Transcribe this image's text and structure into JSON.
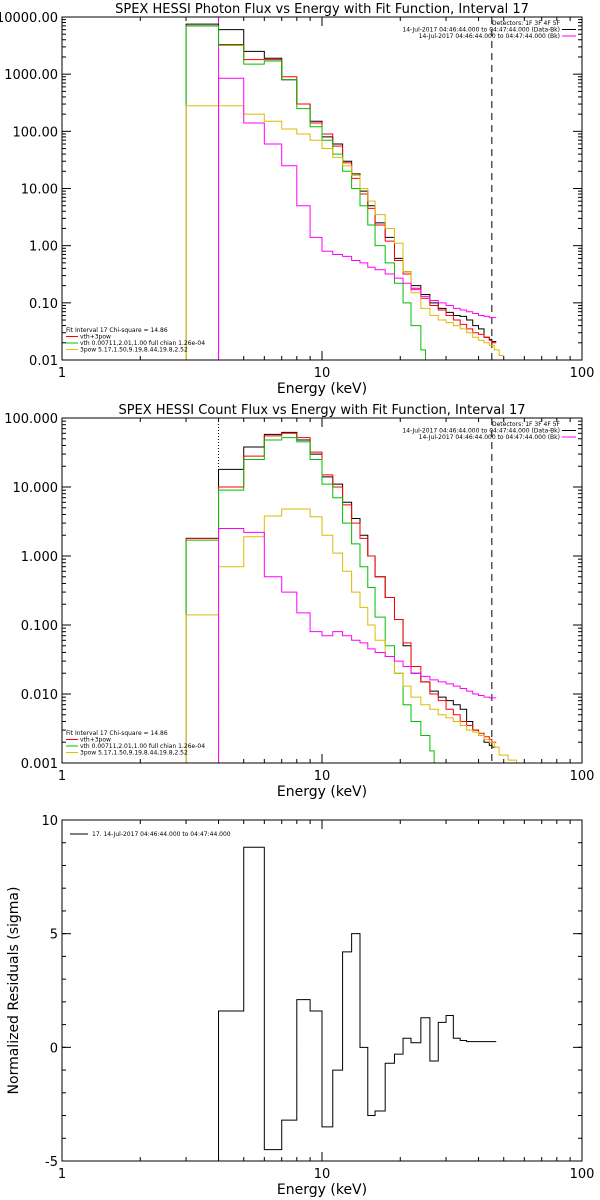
{
  "chart_data": [
    {
      "type": "line",
      "title": "SPEX HESSI Photon Flux vs Energy with Fit Function, Interval 17",
      "xlabel": "Energy (keV)",
      "ylabel": "",
      "xscale": "log",
      "yscale": "log",
      "xlim": [
        1,
        100
      ],
      "ylim": [
        0.01,
        10000
      ],
      "x_ticks": [
        "1",
        "10",
        "100"
      ],
      "y_ticks": [
        "0.01",
        "0.10",
        "1.00",
        "10.00",
        "100.00",
        "1000.00",
        "10000.00"
      ],
      "legend_right": [
        "Detectors: 1F 3F 4F 5F",
        "14-Jul-2017 04:46:44.000 to 04:47:44.000 (Data-Bk)",
        "14-Jul-2017 04:46:44.000 to 04:47:44.000 (Bk)"
      ],
      "legend_left": [
        "Fit Interval 17    Chi-square = 14.86",
        "vth+3pow",
        "vth 0.00711,2.01,1.00  full chian 1.26e-04",
        "3pow 5.17,1.50,9.19,8.44,19.8,2.52"
      ],
      "vlines": [
        {
          "x": 4.0,
          "style": "solid",
          "color": "#ff00ff"
        },
        {
          "x": 45.0,
          "style": "dashed",
          "color": "#000000"
        }
      ],
      "series": [
        {
          "name": "14-Jul-2017 04:46:44.000 to 04:47:44.000 (Data-Bk)",
          "color": "#000000",
          "x": [
            3.0,
            4.0,
            5.0,
            6.0,
            7.0,
            8.0,
            9.0,
            10.0,
            11.0,
            12.0,
            13.0,
            14.0,
            15.0,
            16.0,
            17.5,
            19.0,
            20.5,
            22.0,
            24.0,
            26.0,
            28.0,
            30.0,
            32.0,
            34.0,
            36.0,
            38.0,
            40.0,
            42.0,
            44.0,
            45.0
          ],
          "y": [
            7500,
            6000,
            2500,
            1900,
            800,
            300,
            150,
            80,
            60,
            30,
            18,
            9,
            5,
            2.5,
            1.4,
            0.6,
            0.35,
            0.2,
            0.14,
            0.1,
            0.08,
            0.068,
            0.06,
            0.058,
            0.05,
            0.04,
            0.035,
            0.025,
            0.023,
            0.021
          ]
        },
        {
          "name": "vth+3pow",
          "color": "#ff0000",
          "x": [
            3.0,
            4.0,
            5.0,
            6.0,
            7.0,
            8.0,
            9.0,
            10.0,
            11.0,
            12.0,
            13.0,
            14.0,
            15.0,
            16.0,
            17.5,
            19.0,
            20.5,
            22.0,
            24.0,
            26.0,
            28.0,
            30.0,
            32.0,
            34.0,
            36.0,
            38.0,
            40.0,
            42.0,
            44.0,
            45.0
          ],
          "y": [
            7000,
            3300,
            1800,
            1800,
            900,
            300,
            140,
            90,
            55,
            28,
            15,
            8,
            4.5,
            2.3,
            1.2,
            0.55,
            0.32,
            0.18,
            0.12,
            0.09,
            0.075,
            0.06,
            0.05,
            0.042,
            0.035,
            0.03,
            0.028,
            0.025,
            0.022,
            0.02
          ]
        },
        {
          "name": "vth 0.00711,2.01,1.00  full chian 1.26e-04",
          "color": "#00c000",
          "x": [
            3.0,
            4.0,
            5.0,
            6.0,
            7.0,
            8.0,
            9.0,
            10.0,
            11.0,
            12.0,
            13.0,
            14.0,
            15.0,
            16.0,
            17.5,
            19.0,
            20.5,
            22.0,
            24.0,
            25.0
          ],
          "y": [
            7000,
            3200,
            1500,
            1700,
            800,
            250,
            120,
            70,
            40,
            20,
            10,
            5,
            2.3,
            1,
            0.5,
            0.22,
            0.1,
            0.04,
            0.015,
            0.01
          ]
        },
        {
          "name": "3pow 5.17,1.50,9.19,8.44,19.8,2.52",
          "color": "#ddbb00",
          "x": [
            3.0,
            4.0,
            5.0,
            6.0,
            7.0,
            8.0,
            9.0,
            10.0,
            11.0,
            12.0,
            13.0,
            14.0,
            15.0,
            16.0,
            17.5,
            19.0,
            20.5,
            22.0,
            24.0,
            26.0,
            28.0,
            30.0,
            32.0,
            34.0,
            36.0,
            38.0,
            40.0,
            42.0,
            44.0,
            46.0,
            48.0
          ],
          "y": [
            280,
            280,
            200,
            150,
            110,
            90,
            70,
            50,
            35,
            25,
            17,
            10,
            6,
            3.5,
            2,
            1.1,
            0.35,
            0.15,
            0.08,
            0.06,
            0.05,
            0.045,
            0.04,
            0.035,
            0.03,
            0.025,
            0.022,
            0.02,
            0.018,
            0.015,
            0.012
          ]
        },
        {
          "name": "14-Jul-2017 04:46:44.000 to 04:47:44.000 (Bk)",
          "color": "#ff00ff",
          "x": [
            4.0,
            5.0,
            6.0,
            7.0,
            8.0,
            9.0,
            10.0,
            11.0,
            12.0,
            13.0,
            14.0,
            15.0,
            16.0,
            17.5,
            19.0,
            20.5,
            22.0,
            24.0,
            26.0,
            28.0,
            30.0,
            32.0,
            34.0,
            36.0,
            38.0,
            40.0,
            42.0,
            44.0,
            45.0
          ],
          "y": [
            850,
            140,
            60,
            25,
            5,
            1.4,
            0.8,
            0.7,
            0.65,
            0.55,
            0.5,
            0.42,
            0.38,
            0.32,
            0.27,
            0.22,
            0.17,
            0.13,
            0.11,
            0.1,
            0.09,
            0.08,
            0.075,
            0.07,
            0.065,
            0.06,
            0.058,
            0.055,
            0.055
          ]
        }
      ]
    },
    {
      "type": "line",
      "title": "SPEX HESSI Count Flux vs Energy with Fit Function, Interval 17",
      "xlabel": "Energy (keV)",
      "ylabel": "",
      "xscale": "log",
      "yscale": "log",
      "xlim": [
        1,
        100
      ],
      "ylim": [
        0.001,
        100
      ],
      "x_ticks": [
        "1",
        "10",
        "100"
      ],
      "y_ticks": [
        "0.001",
        "0.010",
        "0.100",
        "1.000",
        "10.000",
        "100.000"
      ],
      "legend_right": [
        "Detectors: 1F 3F 4F 5F",
        "14-Jul-2017 04:46:44.000 to 04:47:44.000 (Data-Bk)",
        "14-Jul-2017 04:46:44.000 to 04:47:44.000 (Bk)"
      ],
      "legend_left": [
        "Fit Interval 17    Chi-square = 14.86",
        "vth+3pow",
        "vth 0.00711,2.01,1.00  full chian 1.26e-04",
        "3pow 5.17,1.50,9.19,8.44,19.8,2.52"
      ],
      "vlines": [
        {
          "x": 4.0,
          "style": "dotted",
          "color": "#000000"
        },
        {
          "x": 45.0,
          "style": "dashed",
          "color": "#000000"
        }
      ],
      "series": [
        {
          "name": "14-Jul-2017 04:46:44.000 to 04:47:44.000 (Data-Bk)",
          "color": "#000000",
          "x": [
            3.0,
            4.0,
            5.0,
            6.0,
            7.0,
            8.0,
            9.0,
            10.0,
            11.0,
            12.0,
            13.0,
            14.0,
            15.0,
            16.0,
            17.5,
            19.0,
            20.5,
            22.0,
            24.0,
            26.0,
            28.0,
            30.0,
            32.0,
            34.0,
            36.0,
            38.0,
            40.0,
            42.0,
            44.0,
            45.0
          ],
          "y": [
            1.8,
            18,
            38,
            58,
            62,
            48,
            30,
            14,
            11,
            6,
            3.5,
            2,
            1,
            0.5,
            0.25,
            0.12,
            0.05,
            0.02,
            0.015,
            0.011,
            0.009,
            0.008,
            0.007,
            0.006,
            0.004,
            0.003,
            0.0025,
            0.002,
            0.0018,
            0.0017
          ]
        },
        {
          "name": "vth+3pow",
          "color": "#ff0000",
          "x": [
            3.0,
            4.0,
            5.0,
            6.0,
            7.0,
            8.0,
            9.0,
            10.0,
            11.0,
            12.0,
            13.0,
            14.0,
            15.0,
            16.0,
            17.5,
            19.0,
            20.5,
            22.0,
            24.0,
            26.0,
            28.0,
            30.0,
            32.0,
            34.0,
            36.0,
            38.0,
            40.0,
            42.0,
            44.0,
            45.0
          ],
          "y": [
            1.8,
            10,
            28,
            55,
            60,
            52,
            32,
            15,
            10,
            5.5,
            3,
            1.8,
            1,
            0.5,
            0.25,
            0.12,
            0.055,
            0.025,
            0.015,
            0.01,
            0.008,
            0.006,
            0.005,
            0.004,
            0.0035,
            0.003,
            0.0027,
            0.0024,
            0.0022,
            0.002
          ]
        },
        {
          "name": "vth 0.00711,2.01,1.00  full chian 1.26e-04",
          "color": "#00c000",
          "x": [
            3.0,
            4.0,
            5.0,
            6.0,
            7.0,
            8.0,
            9.0,
            10.0,
            11.0,
            12.0,
            13.0,
            14.0,
            15.0,
            16.0,
            17.5,
            19.0,
            20.5,
            22.0,
            24.0,
            26.0,
            27.0
          ],
          "y": [
            1.7,
            9,
            25,
            48,
            52,
            45,
            25,
            11,
            7,
            3,
            1.5,
            0.7,
            0.35,
            0.13,
            0.05,
            0.02,
            0.007,
            0.004,
            0.0025,
            0.0015,
            0.001
          ]
        },
        {
          "name": "3pow 5.17,1.50,9.19,8.44,19.8,2.52",
          "color": "#ddbb00",
          "x": [
            3.0,
            4.0,
            5.0,
            6.0,
            7.0,
            8.0,
            9.0,
            10.0,
            11.0,
            12.0,
            13.0,
            14.0,
            15.0,
            16.0,
            17.5,
            19.0,
            20.5,
            22.0,
            24.0,
            26.0,
            28.0,
            30.0,
            32.0,
            34.0,
            36.0,
            38.0,
            40.0,
            42.0,
            44.0,
            46.0,
            48.0,
            52.0,
            56.0,
            60.0
          ],
          "y": [
            0.14,
            0.7,
            1.9,
            3.8,
            4.8,
            4.8,
            3.7,
            2,
            1.1,
            0.6,
            0.3,
            0.18,
            0.1,
            0.06,
            0.035,
            0.02,
            0.013,
            0.009,
            0.007,
            0.006,
            0.005,
            0.0045,
            0.004,
            0.0035,
            0.003,
            0.0028,
            0.0025,
            0.0022,
            0.002,
            0.0017,
            0.0013,
            0.0011,
            0.001,
            0.001
          ]
        },
        {
          "name": "14-Jul-2017 04:46:44.000 to 04:47:44.000 (Bk)",
          "color": "#ff00ff",
          "x": [
            4.0,
            5.0,
            6.0,
            7.0,
            8.0,
            9.0,
            10.0,
            11.0,
            12.0,
            13.0,
            14.0,
            15.0,
            16.0,
            17.5,
            19.0,
            20.5,
            22.0,
            24.0,
            26.0,
            28.0,
            30.0,
            32.0,
            34.0,
            36.0,
            38.0,
            40.0,
            42.0,
            44.0,
            45.0
          ],
          "y": [
            2.5,
            2.2,
            0.5,
            0.3,
            0.15,
            0.08,
            0.07,
            0.08,
            0.07,
            0.06,
            0.055,
            0.045,
            0.04,
            0.035,
            0.03,
            0.025,
            0.02,
            0.018,
            0.016,
            0.015,
            0.014,
            0.013,
            0.012,
            0.011,
            0.01,
            0.0095,
            0.009,
            0.0088,
            0.0088
          ]
        }
      ]
    },
    {
      "type": "line",
      "title": "",
      "xlabel": "Energy (keV)",
      "ylabel": "Normalized Residuals (sigma)",
      "xscale": "log",
      "yscale": "linear",
      "xlim": [
        1,
        100
      ],
      "ylim": [
        -5,
        10
      ],
      "x_ticks": [
        "1",
        "10",
        "100"
      ],
      "y_ticks": [
        "-5",
        "0",
        "5",
        "10"
      ],
      "legend": [
        "17. 14-Jul-2017 04:46:44.000 to 04:47:44.000"
      ],
      "series": [
        {
          "name": "17. 14-Jul-2017 04:46:44.000 to 04:47:44.000",
          "color": "#000000",
          "x": [
            4.0,
            5.0,
            6.0,
            7.0,
            8.0,
            9.0,
            10.0,
            11.0,
            12.0,
            13.0,
            14.0,
            15.0,
            16.0,
            17.5,
            19.0,
            20.5,
            22.0,
            24.0,
            26.0,
            28.0,
            30.0,
            32.0,
            34.0,
            36.0,
            38.0,
            40.0,
            42.0,
            44.0,
            45.0
          ],
          "y": [
            1.6,
            8.8,
            -4.5,
            -3.2,
            2.1,
            1.6,
            -3.5,
            -1,
            4.2,
            5,
            0,
            -3,
            -2.8,
            -0.7,
            -0.3,
            0.4,
            0.2,
            1.3,
            -0.6,
            1.1,
            1.4,
            0.4,
            0.3,
            0.25,
            0.25,
            0.25,
            0.25,
            0.25,
            0.25
          ]
        }
      ]
    }
  ]
}
